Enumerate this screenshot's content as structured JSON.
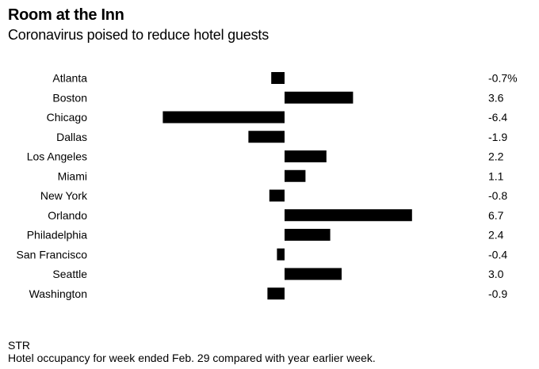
{
  "header": {
    "title": "Room at the Inn",
    "subtitle": "Coronavirus poised to reduce hotel guests"
  },
  "footer": {
    "source": "STR",
    "note": "Hotel occupancy for week ended Feb. 29 compared with year earlier week."
  },
  "colors": {
    "bar": "#000000",
    "text": "#000000",
    "background": "#ffffff"
  },
  "chart_data": {
    "type": "bar",
    "orientation": "horizontal",
    "categories": [
      "Atlanta",
      "Boston",
      "Chicago",
      "Dallas",
      "Los Angeles",
      "Miami",
      "New York",
      "Orlando",
      "Philadelphia",
      "San Francisco",
      "Seattle",
      "Washington"
    ],
    "values": [
      -0.7,
      3.6,
      -6.4,
      -1.9,
      2.2,
      1.1,
      -0.8,
      6.7,
      2.4,
      -0.4,
      3.0,
      -0.9
    ],
    "value_labels": [
      "-0.7%",
      "3.6",
      "-6.4",
      "-1.9",
      "2.2",
      "1.1",
      "-0.8",
      "6.7",
      "2.4",
      "-0.4",
      "3.0",
      "-0.9"
    ],
    "xlim": [
      -6.4,
      6.7
    ],
    "grid": false,
    "legend": "none"
  }
}
